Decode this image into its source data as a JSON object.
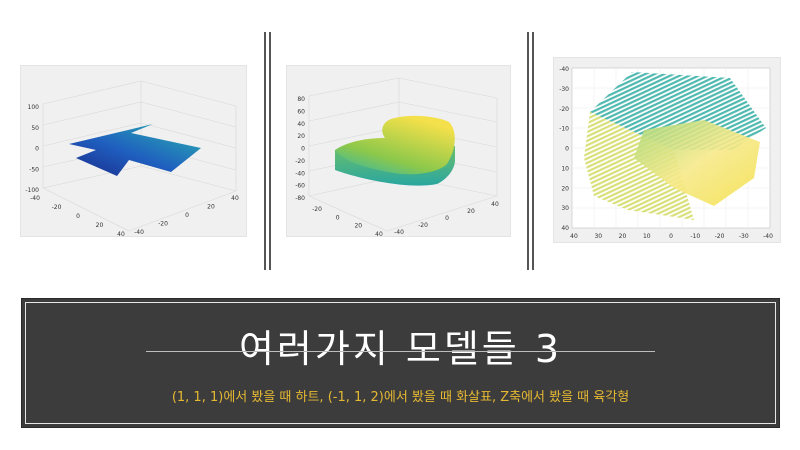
{
  "banner": {
    "title": "여러가지 모델들 3",
    "subtitle": "(1, 1, 1)에서 봤을 때 하트, (-1, 1, 2)에서 봤을 때 화살표, Z축에서 봤을 때 육각형"
  },
  "plots": [
    {
      "name": "arrow-view",
      "z_ticks": [
        "100",
        "50",
        "0",
        "-50",
        "-100"
      ],
      "left_ticks": [
        "-40",
        "-20",
        "0",
        "20",
        "40"
      ],
      "right_ticks": [
        "-40",
        "-20",
        "0",
        "20",
        "40"
      ]
    },
    {
      "name": "heart-view",
      "z_ticks": [
        "80",
        "60",
        "40",
        "20",
        "0",
        "-20",
        "-40",
        "-60",
        "-80"
      ],
      "left_ticks": [
        "-20",
        "0",
        "20",
        "40"
      ],
      "right_ticks": [
        "-40",
        "-20",
        "0",
        "20",
        "40"
      ]
    },
    {
      "name": "hexagon-view",
      "y_ticks": [
        "-40",
        "-30",
        "-20",
        "-10",
        "0",
        "10",
        "20",
        "30",
        "40"
      ],
      "x_ticks": [
        "40",
        "30",
        "20",
        "10",
        "0",
        "-10",
        "-20",
        "-30",
        "-40"
      ]
    }
  ],
  "colors": {
    "banner_bg": "#3c3c3c",
    "subtitle": "#e6b832",
    "surface_blue": "#1f5fbf",
    "surface_teal": "#2bb5b0",
    "surface_yellow": "#f4e04a"
  }
}
